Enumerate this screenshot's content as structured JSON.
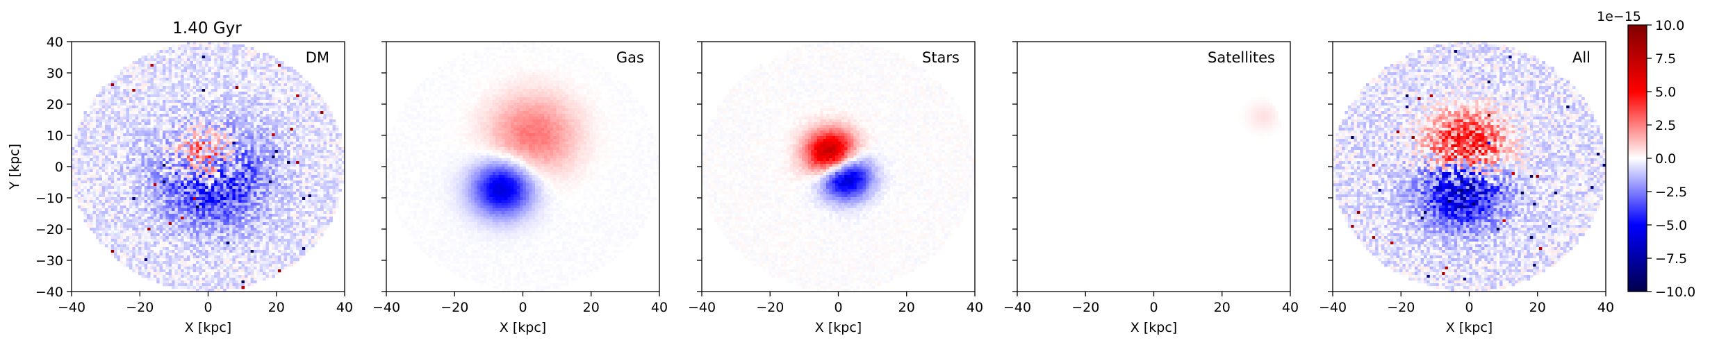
{
  "figure": {
    "time_label": "1.40 Gyr",
    "colormap": "seismic"
  },
  "chart_data": [
    {
      "type": "heatmap",
      "panel_label": "DM",
      "xlabel": "X [kpc]",
      "ylabel": "Y [kpc]",
      "xlim": [
        -40,
        40
      ],
      "ylim": [
        -40,
        40
      ],
      "xticks": [
        "−40",
        "−20",
        "0",
        "20",
        "40"
      ],
      "yticks": [
        "−40",
        "−30",
        "−20",
        "−10",
        "0",
        "10",
        "20",
        "30",
        "40"
      ],
      "field": {
        "domain_radius": 40,
        "lobe_pos": [
          -1,
          3,
          6
        ],
        "lobe_neg": [
          1,
          -3,
          10
        ],
        "background": -0.07,
        "noise": 0.09,
        "lobe_pos_amp": 0.55,
        "lobe_neg_amp": 0.45
      }
    },
    {
      "type": "heatmap",
      "panel_label": "Gas",
      "xlabel": "X [kpc]",
      "ylabel": "",
      "xlim": [
        -40,
        40
      ],
      "ylim": [
        -40,
        40
      ],
      "xticks": [
        "−40",
        "−20",
        "0",
        "20",
        "40"
      ],
      "field": {
        "domain_radius": 40,
        "lobe_pos": [
          3,
          10,
          9
        ],
        "lobe_neg": [
          -6,
          -7,
          6
        ],
        "background": -0.01,
        "noise": 0.01,
        "lobe_pos_amp": 0.28,
        "lobe_neg_amp": 0.6
      }
    },
    {
      "type": "heatmap",
      "panel_label": "Stars",
      "xlabel": "X [kpc]",
      "ylabel": "",
      "xlim": [
        -40,
        40
      ],
      "ylim": [
        -40,
        40
      ],
      "xticks": [
        "−40",
        "−20",
        "0",
        "20",
        "40"
      ],
      "field": {
        "domain_radius": 40,
        "lobe_pos": [
          -2,
          4,
          5
        ],
        "lobe_neg": [
          2,
          -3,
          5
        ],
        "background": 0,
        "noise": 0.02,
        "lobe_pos_amp": 0.85,
        "lobe_neg_amp": 0.75
      }
    },
    {
      "type": "heatmap",
      "panel_label": "Satellites",
      "xlabel": "X [kpc]",
      "ylabel": "",
      "xlim": [
        -40,
        40
      ],
      "ylim": [
        -40,
        40
      ],
      "xticks": [
        "−40",
        "−20",
        "0",
        "20",
        "40"
      ],
      "field": {
        "domain_radius": 40,
        "lobe_pos": [
          32,
          16,
          3
        ],
        "lobe_neg": [
          0,
          0,
          1
        ],
        "background": 0,
        "noise": 0,
        "lobe_pos_amp": 0.06,
        "lobe_neg_amp": 0
      }
    },
    {
      "type": "heatmap",
      "panel_label": "All",
      "xlabel": "X [kpc]",
      "ylabel": "",
      "xlim": [
        -40,
        40
      ],
      "ylim": [
        -40,
        40
      ],
      "xticks": [
        "−40",
        "−20",
        "0",
        "20",
        "40"
      ],
      "field": {
        "domain_radius": 40,
        "lobe_pos": [
          -1,
          5,
          8
        ],
        "lobe_neg": [
          -2,
          -6,
          8
        ],
        "background": -0.08,
        "noise": 0.1,
        "lobe_pos_amp": 0.7,
        "lobe_neg_amp": 0.7
      }
    }
  ],
  "colorbar": {
    "range": [
      -10.0,
      10.0
    ],
    "scale_label": "1e−15",
    "ticks": [
      "10.0",
      "7.5",
      "5.0",
      "2.5",
      "0.0",
      "−2.5",
      "−5.0",
      "−7.5",
      "−10.0"
    ],
    "tick_values": [
      10.0,
      7.5,
      5.0,
      2.5,
      0.0,
      -2.5,
      -5.0,
      -7.5,
      -10.0
    ]
  }
}
